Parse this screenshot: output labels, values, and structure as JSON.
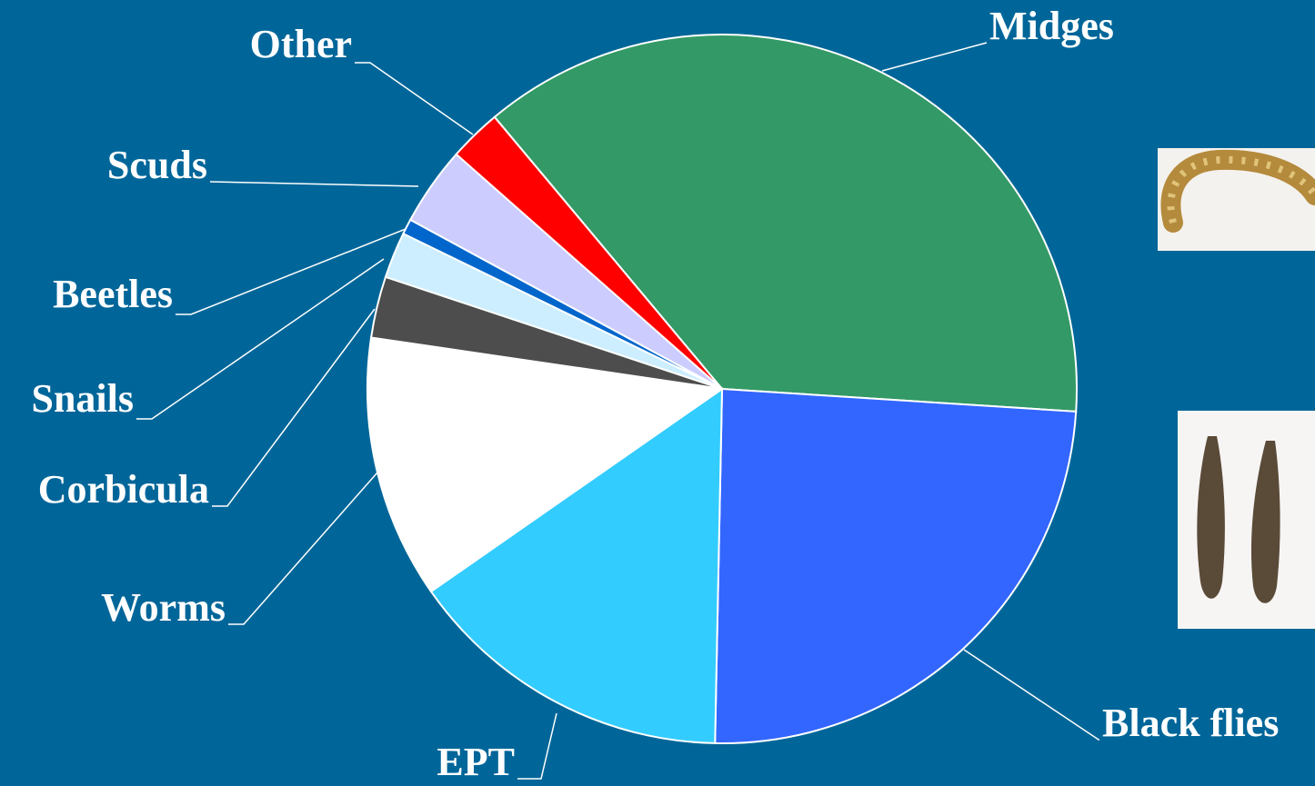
{
  "chart_data": {
    "type": "pie",
    "categories": [
      "Midges",
      "Black flies",
      "EPT",
      "Worms",
      "Corbicula",
      "Snails",
      "Beetles",
      "Scuds",
      "Other"
    ],
    "values": [
      37.1,
      24.3,
      15,
      12,
      2.8,
      2.1,
      0.7,
      3.6,
      2.4
    ],
    "colors": [
      "#339966",
      "#3366ff",
      "#33ccff",
      "#ffffff",
      "#4d4d4d",
      "#cceeff",
      "#0066cc",
      "#ccccff",
      "#ff0000"
    ]
  }
}
